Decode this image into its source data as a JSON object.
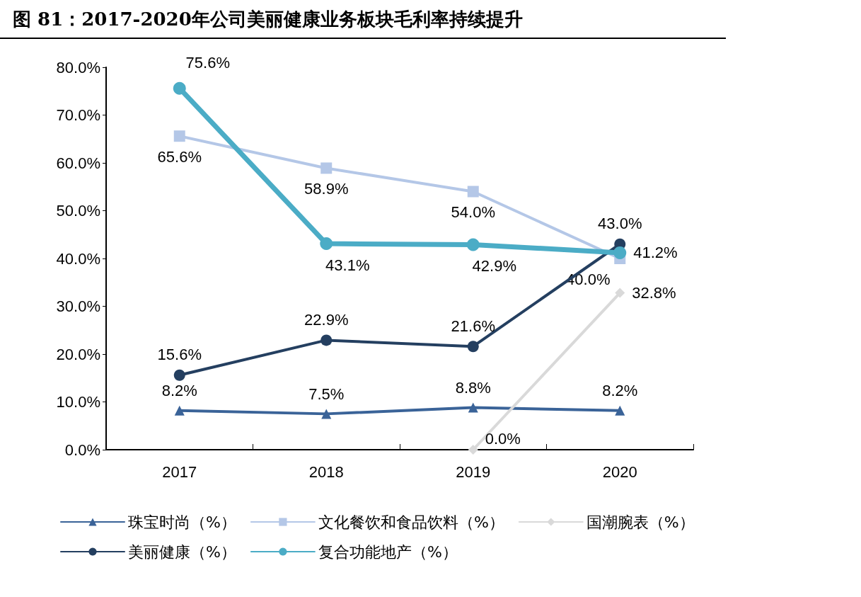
{
  "chart_data": {
    "type": "line",
    "title": "图 81：2017-2020年公司美丽健康业务板块毛利率持续提升",
    "categories": [
      "2017",
      "2018",
      "2019",
      "2020"
    ],
    "ylim": [
      0,
      80
    ],
    "yticks": [
      {
        "value": 0,
        "label": "0.0%"
      },
      {
        "value": 10,
        "label": "10.0%"
      },
      {
        "value": 20,
        "label": "20.0%"
      },
      {
        "value": 30,
        "label": "30.0%"
      },
      {
        "value": 40,
        "label": "40.0%"
      },
      {
        "value": 50,
        "label": "50.0%"
      },
      {
        "value": 60,
        "label": "60.0%"
      },
      {
        "value": 70,
        "label": "70.0%"
      },
      {
        "value": 80,
        "label": "80.0%"
      }
    ],
    "grid": false,
    "legend": "bottom",
    "series": [
      {
        "name": "珠宝时尚（%）",
        "color": "#3a6398",
        "marker": "triangle",
        "values": [
          8.2,
          7.5,
          8.8,
          8.2
        ],
        "value_labels": [
          "8.2%",
          "7.5%",
          "8.8%",
          "8.2%"
        ]
      },
      {
        "name": "文化餐饮和食品饮料（%）",
        "color": "#b4c7e7",
        "marker": "square",
        "values": [
          65.6,
          58.9,
          54.0,
          40.0
        ],
        "value_labels": [
          "65.6%",
          "58.9%",
          "54.0%",
          "40.0%"
        ]
      },
      {
        "name": "国潮腕表（%）",
        "color": "#d9d9d9",
        "marker": "diamond",
        "values": [
          null,
          null,
          0.0,
          32.8
        ],
        "value_labels": [
          null,
          null,
          "0.0%",
          "32.8%"
        ]
      },
      {
        "name": "美丽健康（%）",
        "color": "#243f60",
        "marker": "circle",
        "values": [
          15.6,
          22.9,
          21.6,
          43.0
        ],
        "value_labels": [
          "15.6%",
          "22.9%",
          "21.6%",
          "43.0%"
        ]
      },
      {
        "name": "复合功能地产（%）",
        "color": "#4bacc6",
        "marker": "circle",
        "values": [
          75.6,
          43.1,
          42.9,
          41.2
        ],
        "value_labels": [
          "75.6%",
          "43.1%",
          "42.9%",
          "41.2%"
        ]
      }
    ]
  }
}
